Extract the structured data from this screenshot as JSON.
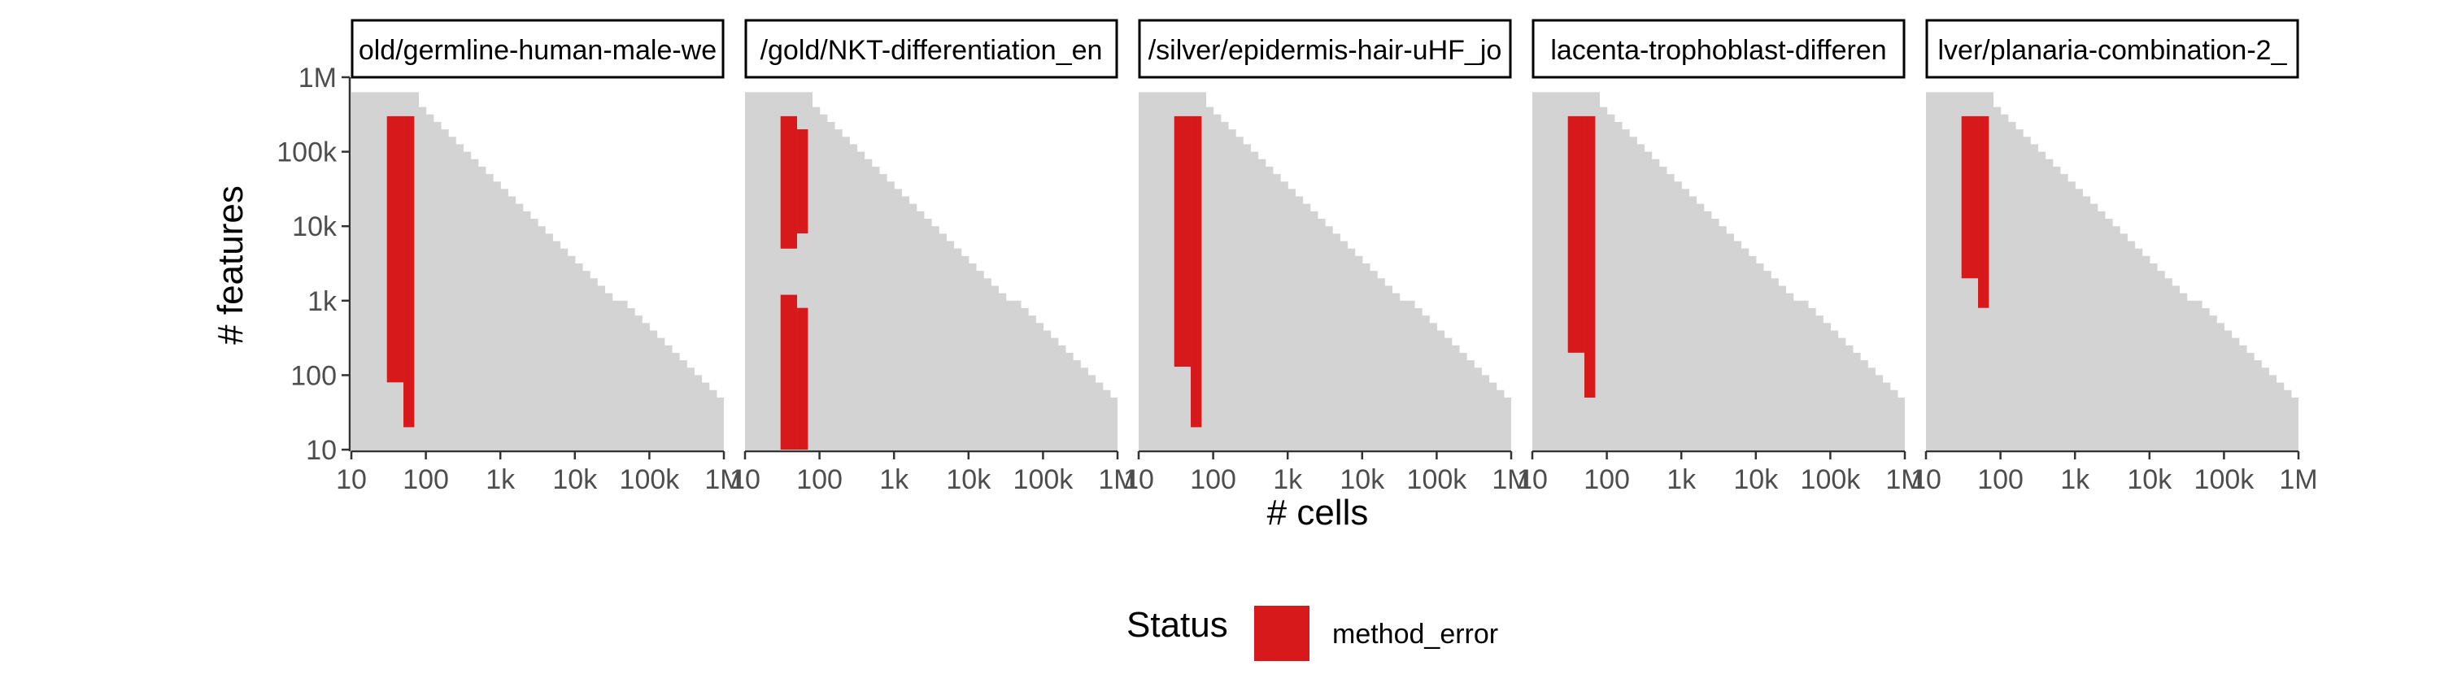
{
  "chart_data": {
    "type": "heatmap",
    "xlabel": "# cells",
    "ylabel": "# features",
    "x_scale": "log10",
    "y_scale": "log10",
    "x_ticks": [
      10,
      100,
      1000,
      10000,
      100000,
      1000000
    ],
    "x_tick_labels": [
      "10",
      "100",
      "1k",
      "10k",
      "100k",
      "1M"
    ],
    "y_ticks": [
      10,
      100,
      1000,
      10000,
      100000,
      1000000
    ],
    "y_tick_labels": [
      "10",
      "100",
      "1k",
      "10k",
      "100k",
      "1M"
    ],
    "xlim": [
      10,
      1000000
    ],
    "ylim": [
      10,
      1000000
    ],
    "grid": false,
    "background_region": {
      "color": "#d3d3d3",
      "description_of_shape": "feasible region where cells × features ≤ ~3e7, grid of half-decade-step tiles"
    },
    "panels": [
      {
        "title": "old/germline-human-male-we",
        "error_columns": [
          {
            "x_range": [
              30,
              50
            ],
            "y_range": [
              80,
              300000
            ]
          },
          {
            "x_range": [
              50,
              70
            ],
            "y_range": [
              20,
              300000
            ]
          }
        ]
      },
      {
        "title": "/gold/NKT-differentiation_en",
        "error_columns": [
          {
            "x_range": [
              30,
              50
            ],
            "y_range": [
              5000,
              300000
            ]
          },
          {
            "x_range": [
              50,
              70
            ],
            "y_range": [
              8000,
              200000
            ]
          },
          {
            "x_range": [
              30,
              50
            ],
            "y_range": [
              10,
              1200
            ]
          },
          {
            "x_range": [
              50,
              70
            ],
            "y_range": [
              10,
              800
            ]
          }
        ]
      },
      {
        "title": "/silver/epidermis-hair-uHF_jo",
        "error_columns": [
          {
            "x_range": [
              30,
              50
            ],
            "y_range": [
              130,
              300000
            ]
          },
          {
            "x_range": [
              50,
              70
            ],
            "y_range": [
              20,
              300000
            ]
          }
        ]
      },
      {
        "title": "lacenta-trophoblast-differen",
        "error_columns": [
          {
            "x_range": [
              30,
              50
            ],
            "y_range": [
              200,
              300000
            ]
          },
          {
            "x_range": [
              50,
              70
            ],
            "y_range": [
              50,
              300000
            ]
          }
        ]
      },
      {
        "title": "lver/planaria-combination-2_",
        "error_columns": [
          {
            "x_range": [
              30,
              50
            ],
            "y_range": [
              2000,
              300000
            ]
          },
          {
            "x_range": [
              50,
              70
            ],
            "y_range": [
              800,
              300000
            ]
          }
        ]
      }
    ],
    "legend": {
      "title": "Status",
      "placement": "bottom",
      "items": [
        {
          "label": "method_error",
          "color": "#d7191c"
        }
      ]
    },
    "colors": {
      "feasible": "#d3d3d3",
      "method_error": "#d7191c",
      "axis": "#333333",
      "strip_border": "#000000"
    }
  }
}
